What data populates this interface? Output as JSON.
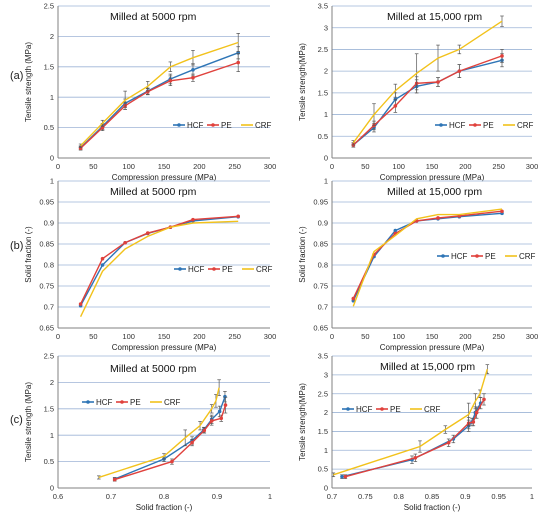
{
  "panel_labels": [
    "(a)",
    "(b)",
    "(c)"
  ],
  "colors": {
    "HCF": "#2E75B6",
    "PE": "#E0413C",
    "CRF": "#F2C21B",
    "grid": "#9DB4D6",
    "axis": "#808080"
  },
  "chart_data": [
    {
      "id": "a-left",
      "type": "line",
      "title": "Milled at 5000 rpm",
      "xlabel": "Compression pressure (MPa)",
      "ylabel": "Tensile strength (MPa)",
      "xlim": [
        0,
        300
      ],
      "ylim": [
        0,
        2.5
      ],
      "xticks": [
        0,
        50,
        100,
        150,
        200,
        250,
        300
      ],
      "yticks": [
        0,
        0.5,
        1,
        1.5,
        2,
        2.5
      ],
      "xtick_labels": [
        "0",
        "50",
        "100",
        "150",
        "200",
        "250",
        "300"
      ],
      "ytick_labels": [
        "0",
        "0.5",
        "1",
        "1.5",
        "2",
        "2.5"
      ],
      "grid": "horizontal",
      "legend": "bottom-right",
      "series": [
        {
          "name": "HCF",
          "x": [
            32,
            63,
            95,
            127,
            159,
            191,
            255
          ],
          "y": [
            0.17,
            0.52,
            0.9,
            1.1,
            1.3,
            1.45,
            1.73
          ],
          "err": [
            0.03,
            0.05,
            0.07,
            0.05,
            0.08,
            0.1,
            0.1
          ]
        },
        {
          "name": "PE",
          "x": [
            32,
            63,
            95,
            127,
            159,
            191,
            255
          ],
          "y": [
            0.16,
            0.5,
            0.86,
            1.09,
            1.27,
            1.32,
            1.57
          ],
          "err": [
            0.03,
            0.05,
            0.06,
            0.05,
            0.08,
            0.06,
            0.15
          ]
        },
        {
          "name": "CRF",
          "x": [
            32,
            63,
            95,
            127,
            159,
            191,
            255
          ],
          "y": [
            0.2,
            0.57,
            0.95,
            1.18,
            1.5,
            1.65,
            1.9
          ],
          "err": [
            0.03,
            0.05,
            0.15,
            0.08,
            0.08,
            0.12,
            0.15
          ]
        }
      ]
    },
    {
      "id": "a-right",
      "type": "line",
      "title": "Milled at 15,000 rpm",
      "xlabel": "Compression pressure (MPa)",
      "ylabel": "Tensile strength(MPa)",
      "xlim": [
        0,
        300
      ],
      "ylim": [
        0,
        3.5
      ],
      "xticks": [
        0,
        50,
        100,
        150,
        200,
        250,
        300
      ],
      "yticks": [
        0,
        0.5,
        1,
        1.5,
        2,
        2.5,
        3,
        3.5
      ],
      "xtick_labels": [
        "0",
        "50",
        "100",
        "150",
        "200",
        "250",
        "300"
      ],
      "ytick_labels": [
        "0",
        "0.5",
        "1",
        "1.5",
        "2",
        "2.5",
        "3",
        "3.5"
      ],
      "grid": "horizontal",
      "legend": "bottom-right",
      "series": [
        {
          "name": "HCF",
          "x": [
            32,
            63,
            95,
            127,
            159,
            191,
            255
          ],
          "y": [
            0.3,
            0.7,
            1.35,
            1.65,
            1.75,
            2.0,
            2.25
          ],
          "err": [
            0.05,
            0.1,
            0.15,
            0.15,
            0.1,
            0.15,
            0.15
          ]
        },
        {
          "name": "PE",
          "x": [
            32,
            63,
            95,
            127,
            159,
            191,
            255
          ],
          "y": [
            0.3,
            0.75,
            1.2,
            1.72,
            1.75,
            2.0,
            2.35
          ],
          "err": [
            0.05,
            0.1,
            0.15,
            0.15,
            0.1,
            0.15,
            0.15
          ]
        },
        {
          "name": "CRF",
          "x": [
            32,
            63,
            95,
            127,
            159,
            191,
            255
          ],
          "y": [
            0.35,
            1.0,
            1.55,
            1.95,
            2.3,
            2.5,
            3.15
          ],
          "err": [
            0.05,
            0.25,
            0.15,
            0.45,
            0.3,
            0.1,
            0.12
          ]
        }
      ]
    },
    {
      "id": "b-left",
      "type": "line",
      "title": "Milled at 5000 rpm",
      "xlabel": "Compression pressure (MPa)",
      "ylabel": "Solid fraction (-)",
      "xlim": [
        0,
        300
      ],
      "ylim": [
        0.65,
        1
      ],
      "xticks": [
        0,
        50,
        100,
        150,
        200,
        250,
        300
      ],
      "yticks": [
        0.65,
        0.7,
        0.75,
        0.8,
        0.85,
        0.9,
        0.95,
        1
      ],
      "xtick_labels": [
        "0",
        "50",
        "100",
        "150",
        "200",
        "250",
        "300"
      ],
      "ytick_labels": [
        "0.65",
        "0.7",
        "0.75",
        "0.8",
        "0.85",
        "0.9",
        "0.95",
        "1"
      ],
      "grid": "horizontal",
      "legend": "center-right",
      "series": [
        {
          "name": "HCF",
          "x": [
            32,
            63,
            95,
            127,
            159,
            191,
            255
          ],
          "y": [
            0.703,
            0.8,
            0.853,
            0.875,
            0.89,
            0.905,
            0.915
          ]
        },
        {
          "name": "PE",
          "x": [
            32,
            63,
            95,
            127,
            159,
            191,
            255
          ],
          "y": [
            0.707,
            0.815,
            0.853,
            0.876,
            0.89,
            0.908,
            0.916
          ]
        },
        {
          "name": "CRF",
          "x": [
            32,
            63,
            95,
            127,
            159,
            191,
            255
          ],
          "y": [
            0.677,
            0.785,
            0.838,
            0.868,
            0.89,
            0.9,
            0.904
          ]
        }
      ]
    },
    {
      "id": "b-right",
      "type": "line",
      "title": "Milled at 15,000 rpm",
      "xlabel": "Compression pressure (MPa)",
      "ylabel": "Solid fraction (-)",
      "xlim": [
        0,
        300
      ],
      "ylim": [
        0.65,
        1
      ],
      "xticks": [
        0,
        50,
        100,
        150,
        200,
        250,
        300
      ],
      "yticks": [
        0.65,
        0.7,
        0.75,
        0.8,
        0.85,
        0.9,
        0.95,
        1
      ],
      "xtick_labels": [
        "0",
        "50",
        "100",
        "150",
        "200",
        "250",
        "300"
      ],
      "ytick_labels": [
        "0.65",
        "0.7",
        "0.75",
        "0.8",
        "0.85",
        "0.9",
        "0.95",
        "1"
      ],
      "grid": "horizontal",
      "legend": "center-right",
      "series": [
        {
          "name": "HCF",
          "x": [
            32,
            63,
            95,
            127,
            159,
            191,
            255
          ],
          "y": [
            0.715,
            0.82,
            0.882,
            0.905,
            0.91,
            0.915,
            0.923
          ]
        },
        {
          "name": "PE",
          "x": [
            32,
            63,
            95,
            127,
            159,
            191,
            255
          ],
          "y": [
            0.72,
            0.825,
            0.875,
            0.905,
            0.912,
            0.917,
            0.928
          ]
        },
        {
          "name": "CRF",
          "x": [
            32,
            63,
            95,
            127,
            159,
            191,
            255
          ],
          "y": [
            0.702,
            0.832,
            0.87,
            0.91,
            0.92,
            0.92,
            0.933
          ]
        }
      ]
    },
    {
      "id": "c-left",
      "type": "line",
      "title": "Milled at 5000 rpm",
      "xlabel": "Solid fraction (-)",
      "ylabel": "Tensile strength (MPa)",
      "xlim": [
        0.6,
        1
      ],
      "ylim": [
        0,
        2.5
      ],
      "xticks": [
        0.6,
        0.7,
        0.8,
        0.9,
        1
      ],
      "yticks": [
        0,
        0.5,
        1,
        1.5,
        2,
        2.5
      ],
      "xtick_labels": [
        "0.6",
        "0.7",
        "0.8",
        "0.9",
        "1"
      ],
      "ytick_labels": [
        "0",
        "0.5",
        "1",
        "1.5",
        "2",
        "2.5"
      ],
      "grid": "horizontal",
      "legend": "top-left",
      "series": [
        {
          "name": "HCF",
          "x": [
            0.707,
            0.8,
            0.853,
            0.875,
            0.89,
            0.905,
            0.915
          ],
          "y": [
            0.17,
            0.55,
            0.9,
            1.1,
            1.3,
            1.45,
            1.73
          ],
          "err": [
            0.03,
            0.05,
            0.07,
            0.05,
            0.08,
            0.1,
            0.1
          ]
        },
        {
          "name": "PE",
          "x": [
            0.707,
            0.815,
            0.853,
            0.876,
            0.89,
            0.908,
            0.916
          ],
          "y": [
            0.16,
            0.5,
            0.86,
            1.09,
            1.27,
            1.32,
            1.57
          ],
          "err": [
            0.03,
            0.05,
            0.06,
            0.05,
            0.08,
            0.06,
            0.15
          ]
        },
        {
          "name": "CRF",
          "x": [
            0.677,
            0.8,
            0.84,
            0.868,
            0.89,
            0.898,
            0.904
          ],
          "y": [
            0.2,
            0.6,
            0.95,
            1.18,
            1.5,
            1.65,
            1.9
          ],
          "err": [
            0.03,
            0.05,
            0.15,
            0.08,
            0.08,
            0.12,
            0.15
          ]
        }
      ]
    },
    {
      "id": "c-right",
      "type": "line",
      "title": "Milled at 15,000 rpm",
      "xlabel": "Solid fraction (-)",
      "ylabel": "Tensile strength(MPa)",
      "xlim": [
        0.7,
        1
      ],
      "ylim": [
        0,
        3.5
      ],
      "xticks": [
        0.7,
        0.75,
        0.8,
        0.85,
        0.9,
        0.95,
        1
      ],
      "yticks": [
        0,
        0.5,
        1,
        1.5,
        2,
        2.5,
        3,
        3.5
      ],
      "xtick_labels": [
        "0.7",
        "0.75",
        "0.8",
        "0.85",
        "0.9",
        "0.95",
        "1"
      ],
      "ytick_labels": [
        "0",
        "0.5",
        "1",
        "1.5",
        "2",
        "2.5",
        "3",
        "3.5"
      ],
      "grid": "horizontal",
      "legend": "top-left",
      "series": [
        {
          "name": "HCF",
          "x": [
            0.715,
            0.82,
            0.882,
            0.905,
            0.91,
            0.915,
            0.923
          ],
          "y": [
            0.3,
            0.75,
            1.3,
            1.65,
            1.75,
            2.0,
            2.25
          ],
          "err": [
            0.05,
            0.1,
            0.1,
            0.15,
            0.1,
            0.15,
            0.15
          ]
        },
        {
          "name": "PE",
          "x": [
            0.72,
            0.825,
            0.875,
            0.905,
            0.912,
            0.917,
            0.928
          ],
          "y": [
            0.3,
            0.8,
            1.2,
            1.72,
            1.75,
            2.0,
            2.35
          ],
          "err": [
            0.05,
            0.1,
            0.1,
            0.15,
            0.1,
            0.15,
            0.15
          ]
        },
        {
          "name": "CRF",
          "x": [
            0.702,
            0.832,
            0.87,
            0.905,
            0.915,
            0.922,
            0.933
          ],
          "y": [
            0.35,
            1.1,
            1.55,
            1.95,
            2.3,
            2.5,
            3.15
          ],
          "err": [
            0.05,
            0.15,
            0.1,
            0.3,
            0.2,
            0.1,
            0.12
          ]
        }
      ]
    }
  ]
}
